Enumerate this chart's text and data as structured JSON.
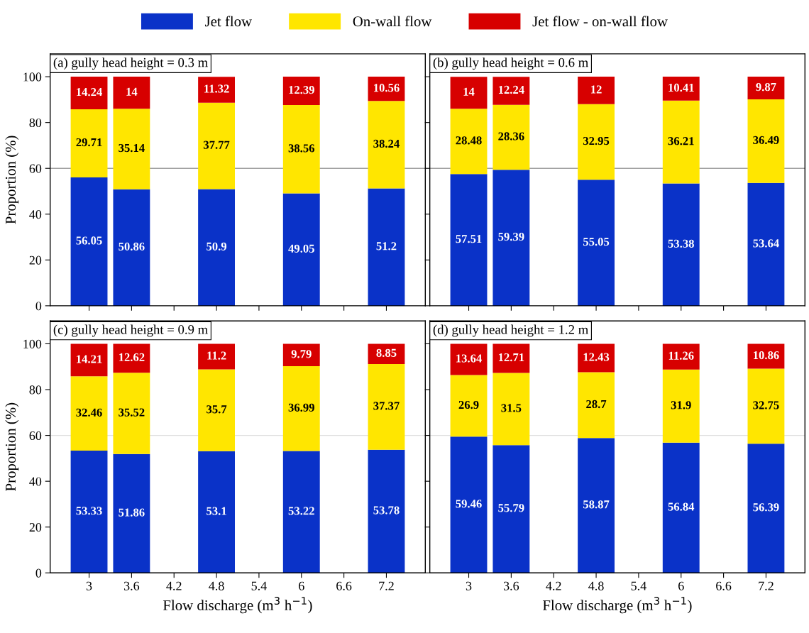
{
  "chart_data": [
    {
      "type": "bar",
      "title": "(a) gully head height = 0.3 m",
      "ylabel": "Proportion (%)",
      "stacked": true,
      "data_labels": true,
      "x": [
        3,
        3.6,
        4.8,
        6,
        7.2
      ],
      "xlim": [
        2.45,
        7.75
      ],
      "xticks": [
        3,
        3.6,
        4.2,
        4.8,
        5.4,
        6,
        6.6,
        7.2
      ],
      "ylim": [
        0,
        110
      ],
      "yticks": [
        0,
        20,
        40,
        60,
        80,
        100
      ],
      "tick_labels": "y",
      "legend": "top",
      "ref_lines": [
        {
          "axis": "y",
          "value": 60,
          "color": "#a0a0a0"
        }
      ],
      "series": [
        {
          "name": "Jet flow",
          "color": "#0a32c8",
          "values": [
            56.05,
            50.86,
            50.9,
            49.05,
            51.2
          ]
        },
        {
          "name": "On-wall flow",
          "color": "#ffe600",
          "values": [
            29.71,
            35.14,
            37.77,
            38.56,
            38.24
          ]
        },
        {
          "name": "Jet flow - on-wall flow",
          "color": "#d70000",
          "values": [
            14.24,
            14,
            11.32,
            12.39,
            10.56
          ]
        }
      ]
    },
    {
      "type": "bar",
      "title": "(b) gully head height = 0.6 m",
      "stacked": true,
      "data_labels": true,
      "x": [
        3,
        3.6,
        4.8,
        6,
        7.2
      ],
      "xlim": [
        2.45,
        7.75
      ],
      "xticks": [
        3,
        3.6,
        4.2,
        4.8,
        5.4,
        6,
        6.6,
        7.2
      ],
      "ylim": [
        0,
        110
      ],
      "yticks": [
        0,
        20,
        40,
        60,
        80,
        100
      ],
      "tick_labels": false,
      "ref_lines": [
        {
          "axis": "y",
          "value": 60,
          "color": "#a0a0a0"
        }
      ],
      "series": [
        {
          "color": "#0a32c8",
          "values": [
            57.51,
            59.39,
            55.05,
            53.38,
            53.64
          ]
        },
        {
          "color": "#ffe600",
          "values": [
            28.48,
            28.36,
            32.95,
            36.21,
            36.49
          ]
        },
        {
          "color": "#d70000",
          "values": [
            14,
            12.24,
            12,
            10.41,
            9.87
          ]
        }
      ]
    },
    {
      "type": "bar",
      "title": "(c) gully head height = 0.9 m",
      "xlabel": "Flow discharge (m$^{3}$ h$^{−1}$)",
      "ylabel": "Proportion (%)",
      "stacked": true,
      "data_labels": true,
      "x": [
        3,
        3.6,
        4.8,
        6,
        7.2
      ],
      "xlim": [
        2.45,
        7.75
      ],
      "xticks": [
        3,
        3.6,
        4.2,
        4.8,
        5.4,
        6,
        6.6,
        7.2
      ],
      "ylim": [
        0,
        110
      ],
      "yticks": [
        0,
        20,
        40,
        60,
        80,
        100
      ],
      "ref_lines": [
        {
          "axis": "y",
          "value": 60,
          "color": "#e0e0e0"
        }
      ],
      "series": [
        {
          "color": "#0a32c8",
          "values": [
            53.33,
            51.86,
            53.1,
            53.22,
            53.78
          ]
        },
        {
          "color": "#ffe600",
          "values": [
            32.46,
            35.52,
            35.7,
            36.99,
            37.37
          ]
        },
        {
          "color": "#d70000",
          "values": [
            14.21,
            12.62,
            11.2,
            9.79,
            8.85
          ]
        }
      ]
    },
    {
      "type": "bar",
      "title": "(d) gully head height = 1.2 m",
      "xlabel": "Flow discharge (m$^{3}$ h$^{−1}$)",
      "stacked": true,
      "data_labels": true,
      "x": [
        3,
        3.6,
        4.8,
        6,
        7.2
      ],
      "xlim": [
        2.45,
        7.75
      ],
      "xticks": [
        3,
        3.6,
        4.2,
        4.8,
        5.4,
        6,
        6.6,
        7.2
      ],
      "ylim": [
        0,
        110
      ],
      "yticks": [
        0,
        20,
        40,
        60,
        80,
        100
      ],
      "tick_labels": "x",
      "ref_lines": [
        {
          "axis": "y",
          "value": 60,
          "color": "#e0e0e0"
        }
      ],
      "series": [
        {
          "color": "#0a32c8",
          "values": [
            59.46,
            55.79,
            58.87,
            56.84,
            56.39
          ]
        },
        {
          "color": "#ffe600",
          "values": [
            26.9,
            31.5,
            28.7,
            31.9,
            32.75
          ]
        },
        {
          "color": "#d70000",
          "values": [
            13.64,
            12.71,
            12.43,
            11.26,
            10.86
          ]
        }
      ]
    }
  ]
}
